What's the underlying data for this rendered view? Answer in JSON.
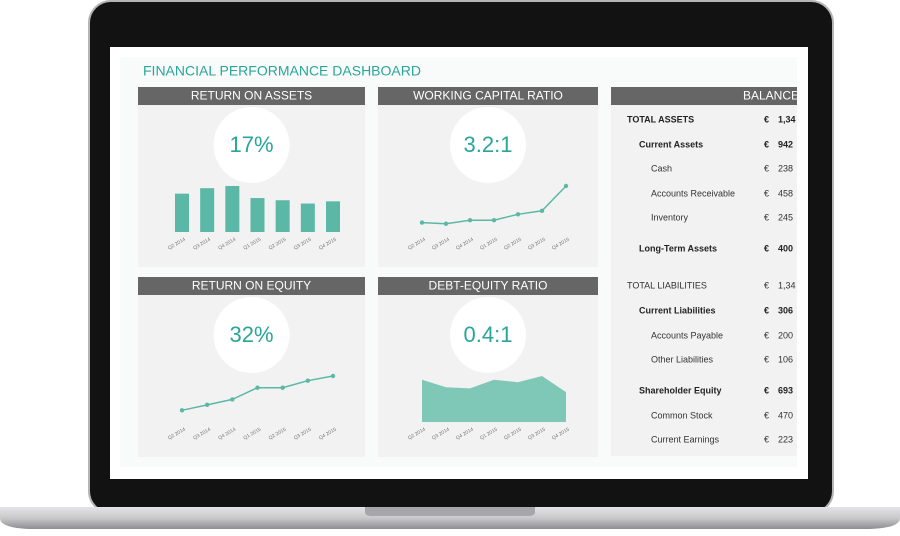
{
  "title": "FINANCIAL PERFORMANCE DASHBOARD",
  "charts": [
    {
      "type": "bar",
      "title": "RETURN ON ASSETS",
      "kpi": "17%",
      "categories": [
        "Q2 2014",
        "Q3 2014",
        "Q4 2014",
        "Q1 2015",
        "Q2 2015",
        "Q3 2015",
        "Q4 2015"
      ],
      "values": [
        35,
        40,
        42,
        31,
        29,
        26,
        28
      ],
      "color": "#5cb8a6"
    },
    {
      "type": "line",
      "title": "WORKING CAPITAL RATIO",
      "kpi": "3.2:1",
      "categories": [
        "Q2 2014",
        "Q3 2014",
        "Q4 2014",
        "Q1 2015",
        "Q2 2015",
        "Q3 2015",
        "Q4 2015"
      ],
      "values": [
        8,
        7,
        10,
        10,
        15,
        18,
        39
      ],
      "color": "#5cb8a6"
    },
    {
      "type": "line",
      "title": "RETURN ON EQUITY",
      "kpi": "32%",
      "categories": [
        "Q2 2014",
        "Q3 2014",
        "Q4 2014",
        "Q1 2015",
        "Q2 2015",
        "Q3 2015",
        "Q4 2015"
      ],
      "values": [
        15,
        22,
        29,
        44,
        44,
        53,
        59
      ],
      "color": "#5cb8a6"
    },
    {
      "type": "area",
      "title": "DEBT-EQUITY RATIO",
      "kpi": "0.4:1",
      "categories": [
        "Q2 2014",
        "Q3 2014",
        "Q4 2014",
        "Q1 2015",
        "Q2 2015",
        "Q3 2015",
        "Q4 2015"
      ],
      "values": [
        34,
        28,
        27,
        34,
        32,
        37,
        24
      ],
      "color": "#7fc8b8"
    }
  ],
  "balance": {
    "title": "BALANCE",
    "rows": [
      {
        "label": "TOTAL ASSETS",
        "currency": "€",
        "amount": "1,34",
        "bold": true,
        "indent": 0
      },
      {
        "label": "Current Assets",
        "currency": "€",
        "amount": "942",
        "bold": true,
        "indent": 1
      },
      {
        "label": "Cash",
        "currency": "€",
        "amount": "238",
        "bold": false,
        "indent": 2
      },
      {
        "label": "Accounts Receivable",
        "currency": "€",
        "amount": "458",
        "bold": false,
        "indent": 2
      },
      {
        "label": "Inventory",
        "currency": "€",
        "amount": "245",
        "bold": false,
        "indent": 2
      },
      {
        "label": "Long-Term Assets",
        "currency": "€",
        "amount": "400",
        "bold": true,
        "indent": 1
      },
      {
        "label": "TOTAL LIABILITIES",
        "currency": "€",
        "amount": "1,34",
        "bold": false,
        "indent": 0
      },
      {
        "label": "Current Liabilities",
        "currency": "€",
        "amount": "306",
        "bold": true,
        "indent": 1
      },
      {
        "label": "Accounts Payable",
        "currency": "€",
        "amount": "200",
        "bold": false,
        "indent": 2
      },
      {
        "label": "Other Liabilities",
        "currency": "€",
        "amount": "106",
        "bold": false,
        "indent": 2
      },
      {
        "label": "Shareholder Equity",
        "currency": "€",
        "amount": "693",
        "bold": true,
        "indent": 1
      },
      {
        "label": "Common Stock",
        "currency": "€",
        "amount": "470",
        "bold": false,
        "indent": 2
      },
      {
        "label": "Current Earnings",
        "currency": "€",
        "amount": "223",
        "bold": false,
        "indent": 2
      }
    ]
  }
}
